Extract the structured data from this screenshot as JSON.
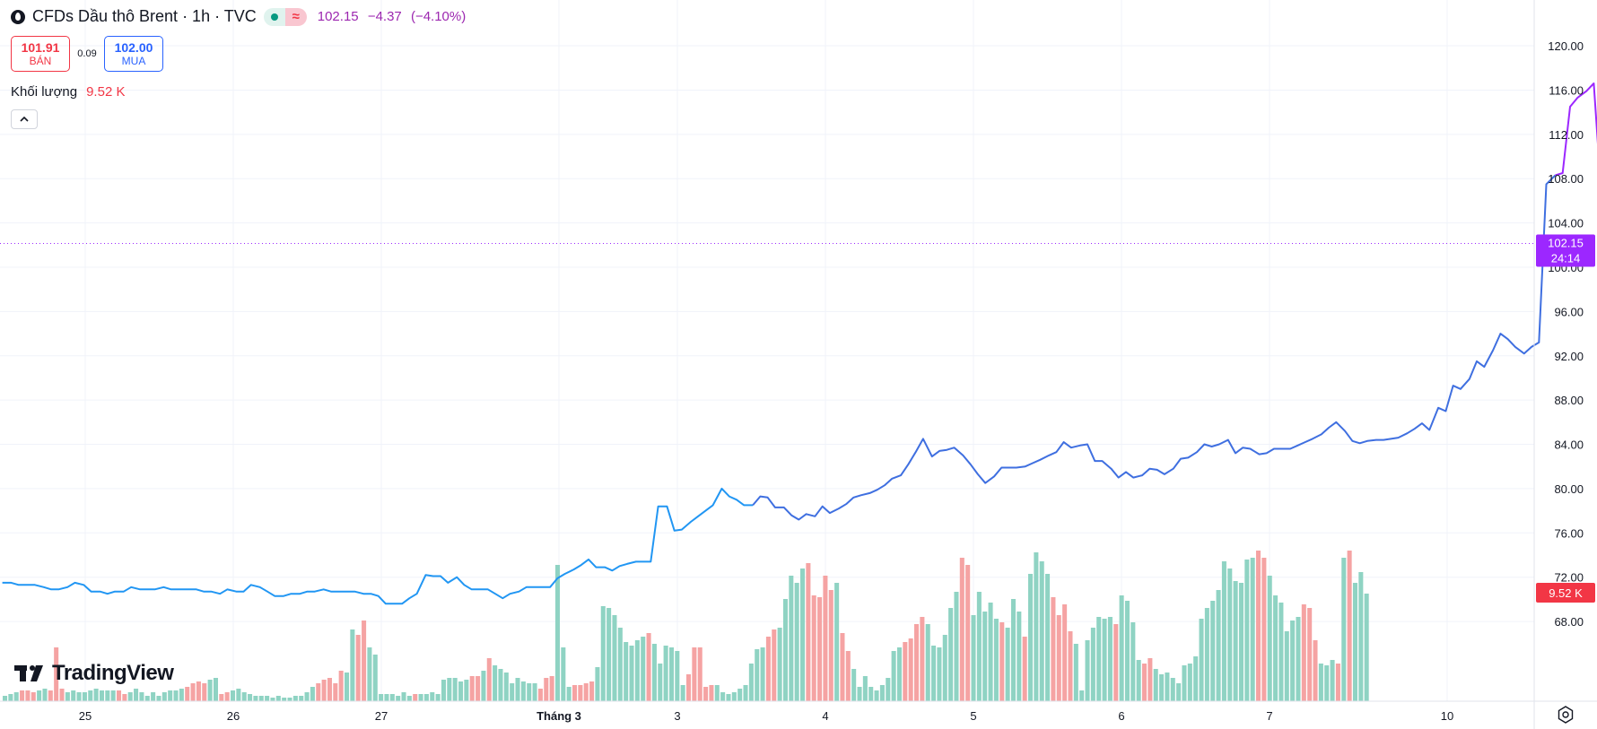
{
  "header": {
    "title": "CFDs Dầu thô Brent · 1h · TVC",
    "price": "102.15",
    "change": "−4.37",
    "change_pct": "(−4.10%)"
  },
  "quote": {
    "sell_value": "101.91",
    "sell_label": "BÁN",
    "spread": "0.09",
    "buy_value": "102.00",
    "buy_label": "MUA"
  },
  "volume": {
    "label": "Khối lượng",
    "value": "9.52 K"
  },
  "branding": {
    "logo_text": "TradingView"
  },
  "icons": {
    "symbol": "oil-drop-icon",
    "collapse": "chevron-up-icon",
    "settings": "gear-icon",
    "logo": "tradingview-logo-icon",
    "market_status": "market-open-icon"
  },
  "colors": {
    "line_early": "#2196f3",
    "line_mid": "#3f6fe0",
    "line_late": "#9c27ff",
    "volume_up": "#8fd3c3",
    "volume_down": "#f5a3a3",
    "last_price_bg": "#9c27ff",
    "volume_badge_bg": "#f23645"
  },
  "chart_data": {
    "type": "line",
    "y_axis": {
      "ticks": [
        "120.00",
        "116.00",
        "112.00",
        "108.00",
        "104.00",
        "100.00",
        "96.00",
        "92.00",
        "88.00",
        "84.00",
        "80.00",
        "76.00",
        "72.00",
        "68.00"
      ],
      "range": [
        64.2,
        121.3
      ]
    },
    "x_axis": {
      "labels": [
        "25",
        "26",
        "27",
        "Tháng 3",
        "3",
        "4",
        "5",
        "6",
        "7",
        "10"
      ],
      "bold_labels": [
        "Tháng 3"
      ],
      "label_index": [
        0,
        10,
        20,
        32,
        40,
        50,
        60,
        70,
        80,
        92
      ]
    },
    "series": [
      {
        "type": "line",
        "points": [
          [
            -5.6,
            71.5
          ],
          [
            -5.0,
            71.5
          ],
          [
            -4.5,
            71.3
          ],
          [
            -3.9,
            71.3
          ],
          [
            -3.4,
            71.3
          ],
          [
            -2.8,
            71.1
          ],
          [
            -2.3,
            70.9
          ],
          [
            -1.8,
            70.9
          ],
          [
            -1.2,
            71.1
          ],
          [
            -0.7,
            71.5
          ],
          [
            -0.1,
            71.3
          ],
          [
            0.4,
            70.7
          ],
          [
            1.0,
            70.7
          ],
          [
            1.5,
            70.5
          ],
          [
            2.0,
            70.7
          ],
          [
            2.6,
            70.7
          ],
          [
            3.1,
            71.1
          ],
          [
            3.7,
            70.9
          ],
          [
            4.2,
            70.9
          ],
          [
            4.7,
            70.9
          ],
          [
            5.3,
            71.1
          ],
          [
            5.8,
            70.9
          ],
          [
            6.4,
            70.9
          ],
          [
            6.9,
            70.9
          ],
          [
            7.5,
            70.9
          ],
          [
            8.0,
            70.7
          ],
          [
            8.5,
            70.7
          ],
          [
            9.1,
            70.5
          ],
          [
            9.6,
            70.9
          ],
          [
            10.2,
            70.7
          ],
          [
            10.7,
            70.7
          ],
          [
            11.2,
            71.3
          ],
          [
            11.8,
            71.1
          ],
          [
            12.3,
            70.7
          ],
          [
            12.8,
            70.3
          ],
          [
            13.4,
            70.3
          ],
          [
            13.9,
            70.5
          ],
          [
            14.5,
            70.5
          ],
          [
            15.0,
            70.7
          ],
          [
            15.5,
            70.7
          ],
          [
            16.1,
            70.9
          ],
          [
            16.6,
            70.7
          ],
          [
            17.1,
            70.7
          ],
          [
            17.7,
            70.7
          ],
          [
            18.2,
            70.7
          ],
          [
            18.8,
            70.5
          ],
          [
            19.3,
            70.5
          ],
          [
            19.8,
            70.3
          ],
          [
            20.3,
            69.6
          ],
          [
            20.9,
            69.6
          ],
          [
            21.4,
            69.6
          ],
          [
            21.9,
            70.1
          ],
          [
            22.4,
            70.5
          ],
          [
            23.0,
            72.2
          ],
          [
            23.5,
            72.1
          ],
          [
            24.0,
            72.1
          ],
          [
            24.5,
            71.5
          ],
          [
            25.1,
            72.0
          ],
          [
            25.6,
            71.3
          ],
          [
            26.1,
            70.9
          ],
          [
            26.6,
            70.9
          ],
          [
            27.2,
            70.9
          ],
          [
            27.7,
            70.5
          ],
          [
            28.2,
            70.1
          ],
          [
            28.7,
            70.5
          ],
          [
            29.3,
            70.7
          ],
          [
            29.8,
            71.1
          ],
          [
            30.3,
            71.1
          ],
          [
            30.9,
            71.1
          ],
          [
            31.4,
            71.1
          ],
          [
            31.9,
            71.9
          ],
          [
            32.4,
            72.3
          ],
          [
            33.0,
            72.7
          ],
          [
            33.5,
            73.1
          ],
          [
            34.0,
            73.6
          ],
          [
            34.5,
            72.9
          ],
          [
            35.1,
            72.9
          ],
          [
            35.6,
            72.6
          ],
          [
            36.1,
            73.0
          ],
          [
            36.6,
            73.2
          ],
          [
            37.2,
            73.4
          ],
          [
            37.7,
            73.4
          ],
          [
            38.2,
            73.4
          ],
          [
            38.7,
            78.4
          ],
          [
            39.3,
            78.4
          ],
          [
            39.8,
            76.2
          ],
          [
            40.3,
            76.3
          ],
          [
            40.9,
            77.0
          ],
          [
            41.4,
            77.5
          ],
          [
            41.9,
            78.0
          ],
          [
            42.4,
            78.5
          ],
          [
            43.0,
            80.0
          ],
          [
            43.5,
            79.3
          ],
          [
            44.0,
            79.0
          ],
          [
            44.5,
            78.5
          ],
          [
            45.1,
            78.5
          ],
          [
            45.6,
            79.3
          ],
          [
            46.1,
            79.2
          ],
          [
            46.6,
            78.3
          ],
          [
            47.2,
            78.3
          ],
          [
            47.7,
            77.6
          ],
          [
            48.2,
            77.2
          ],
          [
            48.7,
            77.7
          ],
          [
            49.3,
            77.5
          ],
          [
            49.8,
            78.4
          ],
          [
            50.3,
            77.8
          ],
          [
            50.9,
            78.2
          ],
          [
            51.4,
            78.6
          ],
          [
            51.9,
            79.2
          ],
          [
            52.4,
            79.4
          ],
          [
            53.0,
            79.6
          ],
          [
            53.5,
            79.9
          ],
          [
            54.0,
            80.3
          ],
          [
            54.5,
            80.9
          ],
          [
            55.1,
            81.2
          ],
          [
            55.6,
            82.2
          ],
          [
            56.1,
            83.3
          ],
          [
            56.6,
            84.5
          ],
          [
            57.2,
            82.9
          ],
          [
            57.7,
            83.4
          ],
          [
            58.2,
            83.5
          ],
          [
            58.7,
            83.7
          ],
          [
            59.3,
            83.0
          ],
          [
            59.8,
            82.2
          ],
          [
            60.3,
            81.3
          ],
          [
            60.8,
            80.5
          ],
          [
            61.4,
            81.1
          ],
          [
            61.9,
            81.9
          ],
          [
            62.4,
            81.9
          ],
          [
            62.9,
            81.9
          ],
          [
            63.5,
            82.0
          ],
          [
            64.0,
            82.3
          ],
          [
            64.5,
            82.6
          ],
          [
            65.1,
            83.0
          ],
          [
            65.6,
            83.3
          ],
          [
            66.1,
            84.2
          ],
          [
            66.6,
            83.7
          ],
          [
            67.2,
            83.9
          ],
          [
            67.7,
            84.0
          ],
          [
            68.2,
            82.5
          ],
          [
            68.7,
            82.5
          ],
          [
            69.3,
            81.8
          ],
          [
            69.8,
            81.0
          ],
          [
            70.3,
            81.5
          ],
          [
            70.8,
            81.0
          ],
          [
            71.4,
            81.2
          ],
          [
            71.9,
            81.8
          ],
          [
            72.4,
            81.7
          ],
          [
            72.9,
            81.3
          ],
          [
            73.5,
            81.8
          ],
          [
            74.0,
            82.7
          ],
          [
            74.5,
            82.8
          ],
          [
            75.1,
            83.3
          ],
          [
            75.6,
            84.0
          ],
          [
            76.1,
            83.8
          ],
          [
            76.6,
            84.0
          ],
          [
            77.2,
            84.4
          ],
          [
            77.7,
            83.2
          ],
          [
            78.2,
            83.7
          ],
          [
            78.7,
            83.6
          ],
          [
            79.3,
            83.1
          ],
          [
            79.8,
            83.2
          ],
          [
            80.3,
            83.6
          ],
          [
            80.8,
            83.6
          ],
          [
            81.4,
            83.6
          ],
          [
            81.9,
            83.9
          ],
          [
            82.4,
            84.2
          ],
          [
            82.9,
            84.5
          ],
          [
            83.5,
            84.9
          ],
          [
            84.0,
            85.5
          ],
          [
            84.5,
            86.0
          ],
          [
            85.1,
            85.2
          ],
          [
            85.6,
            84.3
          ],
          [
            86.1,
            84.1
          ],
          [
            86.6,
            84.3
          ],
          [
            87.2,
            84.4
          ],
          [
            87.7,
            84.4
          ],
          [
            88.2,
            84.5
          ],
          [
            88.7,
            84.6
          ],
          [
            89.3,
            85.0
          ],
          [
            89.8,
            85.4
          ],
          [
            90.3,
            85.9
          ],
          [
            90.8,
            85.3
          ],
          [
            91.4,
            87.3
          ],
          [
            91.9,
            87.0
          ],
          [
            92.4,
            89.3
          ],
          [
            92.9,
            89.0
          ],
          [
            93.5,
            89.9
          ],
          [
            94.0,
            91.5
          ],
          [
            94.5,
            91.0
          ],
          [
            95.1,
            92.5
          ],
          [
            95.6,
            94.0
          ],
          [
            96.1,
            93.5
          ],
          [
            96.6,
            92.8
          ],
          [
            97.2,
            92.2
          ],
          [
            97.7,
            92.8
          ],
          [
            98.2,
            93.2
          ],
          [
            98.7,
            107.5
          ],
          [
            99.3,
            108.3
          ],
          [
            99.8,
            108.5
          ],
          [
            100.3,
            114.5
          ],
          [
            100.8,
            115.3
          ],
          [
            101.4,
            115.9
          ],
          [
            101.9,
            116.6
          ],
          [
            102.4,
            106.8
          ],
          [
            102.9,
            108.4
          ],
          [
            103.5,
            107.8
          ],
          [
            104.0,
            106.6
          ],
          [
            104.5,
            102.15
          ]
        ]
      },
      {
        "type": "volume_bar",
        "note": "height fraction 0-1 of volume pane; dir u=up/teal, d=down/red",
        "heights": [
          0.03,
          0.04,
          0.05,
          0.06,
          0.06,
          0.05,
          0.06,
          0.07,
          0.06,
          0.3,
          0.07,
          0.05,
          0.06,
          0.05,
          0.05,
          0.06,
          0.07,
          0.06,
          0.06,
          0.06,
          0.06,
          0.04,
          0.05,
          0.07,
          0.05,
          0.03,
          0.05,
          0.03,
          0.05,
          0.06,
          0.06,
          0.07,
          0.08,
          0.1,
          0.11,
          0.1,
          0.12,
          0.13,
          0.04,
          0.05,
          0.06,
          0.07,
          0.05,
          0.04,
          0.03,
          0.03,
          0.03,
          0.02,
          0.03,
          0.02,
          0.02,
          0.03,
          0.03,
          0.05,
          0.08,
          0.1,
          0.12,
          0.13,
          0.1,
          0.17,
          0.16,
          0.4,
          0.37,
          0.45,
          0.3,
          0.26,
          0.04,
          0.04,
          0.04,
          0.03,
          0.05,
          0.03,
          0.04,
          0.04,
          0.04,
          0.05,
          0.04,
          0.12,
          0.13,
          0.13,
          0.11,
          0.12,
          0.14,
          0.14,
          0.17,
          0.24,
          0.2,
          0.18,
          0.16,
          0.1,
          0.13,
          0.11,
          0.1,
          0.1,
          0.07,
          0.13,
          0.14,
          0.76,
          0.3,
          0.08,
          0.09,
          0.09,
          0.1,
          0.11,
          0.19,
          0.53,
          0.52,
          0.48,
          0.41,
          0.33,
          0.31,
          0.34,
          0.36,
          0.38,
          0.32,
          0.21,
          0.31,
          0.3,
          0.28,
          0.09,
          0.15,
          0.3,
          0.3,
          0.08,
          0.09,
          0.09,
          0.05,
          0.04,
          0.05,
          0.07,
          0.09,
          0.21,
          0.29,
          0.3,
          0.36,
          0.4,
          0.41,
          0.57,
          0.7,
          0.66,
          0.74,
          0.77,
          0.59,
          0.58,
          0.7,
          0.62,
          0.66,
          0.38,
          0.28,
          0.18,
          0.08,
          0.14,
          0.08,
          0.06,
          0.09,
          0.13,
          0.28,
          0.3,
          0.33,
          0.35,
          0.43,
          0.47,
          0.43,
          0.31,
          0.3,
          0.37,
          0.52,
          0.61,
          0.8,
          0.76,
          0.48,
          0.61,
          0.5,
          0.55,
          0.46,
          0.44,
          0.41,
          0.57,
          0.5,
          0.36,
          0.71,
          0.83,
          0.78,
          0.71,
          0.58,
          0.48,
          0.54,
          0.39,
          0.32,
          0.06,
          0.34,
          0.41,
          0.47,
          0.46,
          0.47,
          0.43,
          0.59,
          0.56,
          0.44,
          0.23,
          0.21,
          0.24,
          0.18,
          0.15,
          0.16,
          0.13,
          0.1,
          0.2,
          0.21,
          0.25,
          0.46,
          0.52,
          0.56,
          0.62,
          0.78,
          0.74,
          0.67,
          0.66,
          0.79,
          0.8,
          0.84,
          0.8,
          0.7,
          0.59,
          0.55,
          0.39,
          0.45,
          0.47,
          0.54,
          0.52,
          0.34,
          0.21,
          0.2,
          0.23,
          0.21,
          0.8,
          0.84,
          0.66,
          0.72,
          0.6
        ],
        "dirs": "uuuddduuddduuuuuuuuudduuuuuuuuuudddduudduuuuuuuuuuuuuuuddddduudduuuuuuuuduuuuuuuuudduduuuuuuuuddduuudddduuuuuuuuuduuuuuuddddduuuuuuuuudduuuuudddddudduuuuuuuuudddduuuuuudduuuuuduuuduuuudddduuuuuuuduuuudduuuuuuuuuuuuuuuuuudduuuuuuddduuudud"
      }
    ],
    "last_price": {
      "value": "102.15",
      "countdown": "24:14"
    },
    "volume_badge": "9.52 K"
  }
}
